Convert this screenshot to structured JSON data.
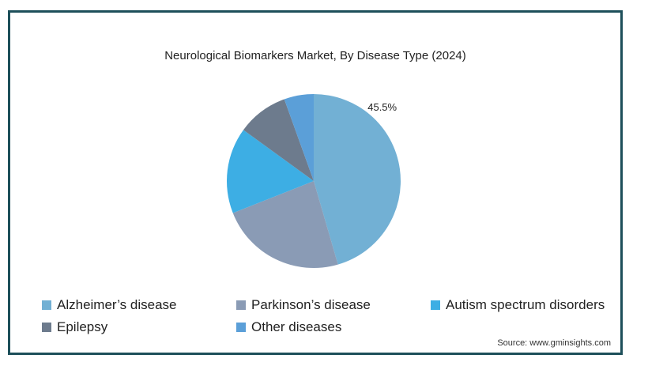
{
  "chart_data": {
    "type": "pie",
    "title": "Neurological Biomarkers Market, By Disease Type (2024)",
    "categories": [
      "Alzheimer’s disease",
      "Parkinson’s disease",
      "Autism spectrum disorders",
      "Epilepsy",
      "Other diseases"
    ],
    "values": [
      45.5,
      23.5,
      16.0,
      9.5,
      5.5
    ],
    "colors": [
      "#72b0d4",
      "#8a9bb5",
      "#3daee4",
      "#6d7b8d",
      "#5b9fd8"
    ],
    "data_labels": [
      {
        "category": "Alzheimer’s disease",
        "text": "45.5%"
      }
    ],
    "legend_position": "bottom"
  },
  "source": "Source: www.gminsights.com"
}
